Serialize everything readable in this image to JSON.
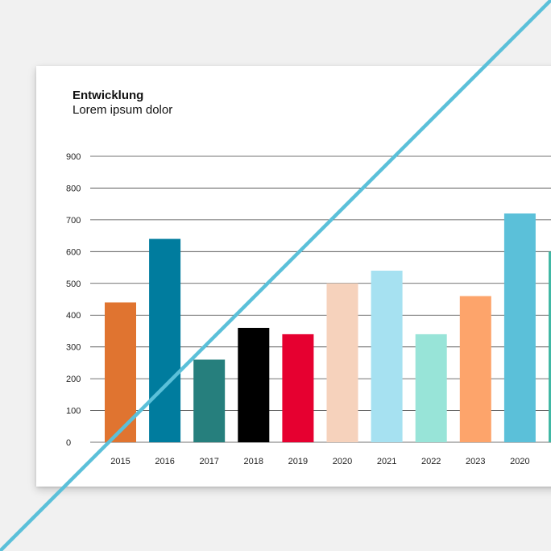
{
  "chart_data": {
    "type": "bar",
    "title": "Entwicklung",
    "subtitle": "Lorem ipsum dolor",
    "categories": [
      "2015",
      "2016",
      "2017",
      "2018",
      "2019",
      "2020",
      "2021",
      "2022",
      "2023",
      "2020",
      ""
    ],
    "values": [
      440,
      640,
      260,
      360,
      340,
      500,
      540,
      340,
      460,
      720,
      600
    ],
    "bar_colors": [
      "#e07430",
      "#007c9e",
      "#267f7d",
      "#000000",
      "#e60030",
      "#f6d2bc",
      "#a6e1f1",
      "#98e4d8",
      "#fda46b",
      "#5bc0d9",
      "#42b8a5"
    ],
    "yticks": [
      0,
      100,
      200,
      300,
      400,
      500,
      600,
      700,
      800,
      900
    ],
    "ylim": [
      0,
      900
    ],
    "grid": true,
    "xlabel": "",
    "ylabel": ""
  },
  "decoration": {
    "diagonal_line_color": "#5bc0d9"
  }
}
